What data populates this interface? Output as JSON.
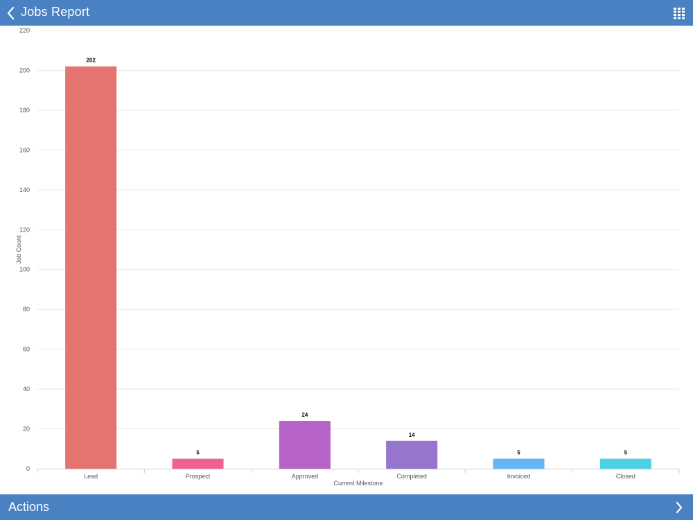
{
  "header": {
    "title": "Jobs Report",
    "back_icon": "chevron-left-icon",
    "grid_icon": "grid-icon"
  },
  "footer": {
    "label": "Actions",
    "chevron_icon": "chevron-right-icon"
  },
  "colors": {
    "bar_blue": "#4a81c2"
  },
  "chart_data": {
    "type": "bar",
    "categories": [
      "Lead",
      "Prospect",
      "Approved",
      "Completed",
      "Invoiced",
      "Closed"
    ],
    "values": [
      202,
      5,
      24,
      14,
      5,
      5
    ],
    "colors": [
      "#e5736f",
      "#ef6190",
      "#b563c6",
      "#9575cd",
      "#64b5f6",
      "#4dd0e1"
    ],
    "xlabel": "Current Milestone",
    "ylabel": "Job Count",
    "ylim": [
      0,
      220
    ],
    "yticks": [
      0,
      20,
      40,
      60,
      80,
      100,
      120,
      140,
      160,
      180,
      200,
      220
    ],
    "grid": true,
    "legend": "none"
  }
}
